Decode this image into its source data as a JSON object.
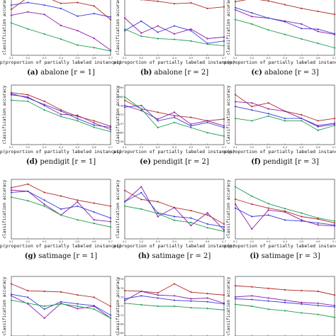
{
  "figure": {
    "xlabel": "p(proportion of partially labeled instances)",
    "ylabel": "classification accuracy",
    "x_ticks": [
      "0.1",
      "0.2",
      "0.3",
      "0.4",
      "0.5",
      "0.6",
      "0.7"
    ]
  },
  "colors": {
    "green": "#1f9e54",
    "red": "#b22a2a",
    "purple": "#8b1fa8",
    "blue": "#3b3bd6"
  },
  "chart_data": [
    {
      "type": "line",
      "caption_letter": "(a)",
      "caption_text": "abalone [r = 1]",
      "x": [
        0.1,
        0.2,
        0.3,
        0.4,
        0.5,
        0.6,
        0.7
      ],
      "ylim": [
        0.1,
        0.8
      ],
      "y_ticks": [],
      "legend": [],
      "series": [
        {
          "color_key": "red",
          "values": [
            0.64,
            0.78,
            0.79,
            0.71,
            0.72,
            0.68,
            0.52
          ]
        },
        {
          "color_key": "blue",
          "values": [
            0.69,
            0.72,
            0.69,
            0.65,
            0.56,
            0.59,
            0.55
          ]
        },
        {
          "color_key": "purple",
          "values": [
            0.57,
            0.61,
            0.58,
            0.45,
            0.39,
            0.3,
            0.16
          ]
        },
        {
          "color_key": "green",
          "values": [
            0.48,
            0.41,
            0.35,
            0.29,
            0.22,
            0.19,
            0.15
          ]
        }
      ]
    },
    {
      "type": "line",
      "caption_letter": "(b)",
      "caption_text": "abalone [r = 2]",
      "x": [
        0.1,
        0.2,
        0.3,
        0.4,
        0.5,
        0.6,
        0.7
      ],
      "ylim": [
        0.15,
        0.9
      ],
      "y_ticks": [],
      "legend": [],
      "series": [
        {
          "color_key": "red",
          "values": [
            0.89,
            0.85,
            0.83,
            0.8,
            0.81,
            0.74,
            0.76
          ]
        },
        {
          "color_key": "blue",
          "values": [
            0.46,
            0.58,
            0.44,
            0.52,
            0.46,
            0.3,
            0.33
          ]
        },
        {
          "color_key": "purple",
          "values": [
            0.62,
            0.43,
            0.52,
            0.42,
            0.48,
            0.36,
            0.38
          ]
        },
        {
          "color_key": "green",
          "values": [
            0.48,
            0.39,
            0.36,
            0.35,
            0.33,
            0.29,
            0.27
          ]
        }
      ]
    },
    {
      "type": "line",
      "caption_letter": "(c)",
      "caption_text": "abalone [r = 3]",
      "x": [
        0.1,
        0.2,
        0.3,
        0.4,
        0.5,
        0.6,
        0.7
      ],
      "ylim": [
        0.1,
        0.9
      ],
      "y_ticks": [],
      "legend": [],
      "series": [
        {
          "color_key": "red",
          "values": [
            0.82,
            0.86,
            0.83,
            0.78,
            0.73,
            0.69,
            0.65
          ]
        },
        {
          "color_key": "purple",
          "values": [
            0.71,
            0.62,
            0.6,
            0.56,
            0.52,
            0.42,
            0.38
          ]
        },
        {
          "color_key": "blue",
          "values": [
            0.74,
            0.67,
            0.6,
            0.55,
            0.46,
            0.45,
            0.39
          ]
        },
        {
          "color_key": "green",
          "values": [
            0.58,
            0.52,
            0.44,
            0.38,
            0.32,
            0.26,
            0.2
          ]
        }
      ]
    },
    {
      "type": "line",
      "caption_letter": "(d)",
      "caption_text": "pendigit [r = 1]",
      "x": [
        0.1,
        0.2,
        0.3,
        0.4,
        0.5,
        0.6,
        0.7
      ],
      "ylim": [
        0.93,
        0.985
      ],
      "y_ticks": [],
      "legend": [],
      "series": [
        {
          "color_key": "red",
          "values": [
            0.978,
            0.976,
            0.97,
            0.962,
            0.956,
            0.952,
            0.947
          ]
        },
        {
          "color_key": "purple",
          "values": [
            0.976,
            0.974,
            0.966,
            0.958,
            0.957,
            0.95,
            0.944
          ]
        },
        {
          "color_key": "blue",
          "values": [
            0.977,
            0.973,
            0.967,
            0.961,
            0.954,
            0.948,
            0.946
          ]
        },
        {
          "color_key": "green",
          "values": [
            0.971,
            0.97,
            0.962,
            0.956,
            0.952,
            0.946,
            0.942
          ]
        }
      ]
    },
    {
      "type": "line",
      "caption_letter": "(e)",
      "caption_text": "pendigit [r = 2]",
      "x": [
        0.1,
        0.2,
        0.3,
        0.4,
        0.5,
        0.6,
        0.7
      ],
      "ylim": [
        0.955,
        0.99
      ],
      "y_ticks": [
        "0.99",
        "0.985",
        "0.98",
        "0.975",
        "0.97",
        "0.965",
        "0.96"
      ],
      "legend": [],
      "series": [
        {
          "color_key": "red",
          "values": [
            0.981,
            0.976,
            0.974,
            0.972,
            0.971,
            0.969,
            0.97
          ]
        },
        {
          "color_key": "purple",
          "values": [
            0.978,
            0.975,
            0.97,
            0.974,
            0.967,
            0.969,
            0.966
          ]
        },
        {
          "color_key": "blue",
          "values": [
            0.977,
            0.978,
            0.969,
            0.971,
            0.966,
            0.968,
            0.965
          ]
        },
        {
          "color_key": "green",
          "values": [
            0.983,
            0.976,
            0.965,
            0.968,
            0.965,
            0.962,
            0.96
          ]
        }
      ]
    },
    {
      "type": "line",
      "caption_letter": "(f)",
      "caption_text": "pendigit [r = 3]",
      "x": [
        0.1,
        0.2,
        0.3,
        0.4,
        0.5,
        0.6,
        0.7
      ],
      "ylim": [
        0.94,
        0.99
      ],
      "y_ticks": [],
      "legend": [],
      "series": [
        {
          "color_key": "red",
          "values": [
            0.982,
            0.972,
            0.975,
            0.968,
            0.965,
            0.96,
            0.962
          ]
        },
        {
          "color_key": "purple",
          "values": [
            0.976,
            0.975,
            0.97,
            0.968,
            0.962,
            0.955,
            0.957
          ]
        },
        {
          "color_key": "blue",
          "values": [
            0.972,
            0.969,
            0.966,
            0.962,
            0.962,
            0.956,
            0.958
          ]
        },
        {
          "color_key": "green",
          "values": [
            0.962,
            0.96,
            0.964,
            0.96,
            0.96,
            0.952,
            0.956
          ]
        }
      ]
    },
    {
      "type": "line",
      "caption_letter": "(g)",
      "caption_text": "satimage [r = 1]",
      "x": [
        0.1,
        0.2,
        0.3,
        0.4,
        0.5,
        0.6,
        0.7
      ],
      "ylim": [
        0.78,
        0.88
      ],
      "y_ticks": [],
      "legend": [],
      "series": [
        {
          "color_key": "red",
          "values": [
            0.866,
            0.872,
            0.858,
            0.852,
            0.845,
            0.84,
            0.835
          ]
        },
        {
          "color_key": "purple",
          "values": [
            0.862,
            0.86,
            0.838,
            0.82,
            0.842,
            0.812,
            0.809
          ]
        },
        {
          "color_key": "blue",
          "values": [
            0.858,
            0.86,
            0.845,
            0.83,
            0.835,
            0.825,
            0.815
          ]
        },
        {
          "color_key": "green",
          "values": [
            0.85,
            0.844,
            0.835,
            0.82,
            0.812,
            0.806,
            0.8
          ]
        }
      ]
    },
    {
      "type": "line",
      "caption_letter": "(h)",
      "caption_text": "satimage [r = 2]",
      "x": [
        0.1,
        0.2,
        0.3,
        0.4,
        0.5,
        0.6,
        0.7
      ],
      "ylim": [
        0.84,
        0.92
      ],
      "y_ticks": [],
      "legend": [],
      "series": [
        {
          "color_key": "red",
          "values": [
            0.905,
            0.893,
            0.89,
            0.882,
            0.878,
            0.872,
            0.86
          ]
        },
        {
          "color_key": "purple",
          "values": [
            0.89,
            0.91,
            0.87,
            0.882,
            0.858,
            0.875,
            0.852
          ]
        },
        {
          "color_key": "blue",
          "values": [
            0.89,
            0.902,
            0.875,
            0.87,
            0.868,
            0.86,
            0.856
          ]
        },
        {
          "color_key": "green",
          "values": [
            0.884,
            0.88,
            0.874,
            0.865,
            0.862,
            0.855,
            0.85
          ]
        }
      ]
    },
    {
      "type": "line",
      "caption_letter": "(i)",
      "caption_text": "satimage [r = 3]",
      "x": [
        0.1,
        0.2,
        0.3,
        0.4,
        0.5,
        0.6,
        0.7
      ],
      "ylim": [
        0.8,
        0.92
      ],
      "y_ticks": [],
      "legend": [],
      "series": [
        {
          "color_key": "green",
          "values": [
            0.905,
            0.886,
            0.871,
            0.861,
            0.852,
            0.842,
            0.836
          ]
        },
        {
          "color_key": "red",
          "values": [
            0.88,
            0.87,
            0.862,
            0.856,
            0.845,
            0.84,
            0.832
          ]
        },
        {
          "color_key": "purple",
          "values": [
            0.87,
            0.82,
            0.858,
            0.854,
            0.838,
            0.828,
            0.826
          ]
        },
        {
          "color_key": "blue",
          "values": [
            0.862,
            0.845,
            0.848,
            0.838,
            0.836,
            0.832,
            0.828
          ]
        }
      ]
    },
    {
      "type": "line",
      "caption_letter": "",
      "caption_text": "",
      "x": [
        0.1,
        0.2,
        0.3,
        0.4,
        0.5,
        0.6,
        0.7
      ],
      "ylim": [
        0.7,
        0.9
      ],
      "y_ticks": [],
      "legend": [],
      "series": [
        {
          "color_key": "red",
          "values": [
            0.875,
            0.852,
            0.85,
            0.848,
            0.838,
            0.83,
            0.8
          ]
        },
        {
          "color_key": "purple",
          "values": [
            0.835,
            0.808,
            0.76,
            0.81,
            0.792,
            0.8,
            0.76
          ]
        },
        {
          "color_key": "blue",
          "values": [
            0.84,
            0.83,
            0.79,
            0.815,
            0.808,
            0.802,
            0.77
          ]
        },
        {
          "color_key": "green",
          "values": [
            0.82,
            0.81,
            0.8,
            0.808,
            0.8,
            0.79,
            0.76
          ]
        }
      ]
    },
    {
      "type": "line",
      "caption_letter": "",
      "caption_text": "",
      "x": [
        0.1,
        0.2,
        0.3,
        0.4,
        0.5,
        0.6,
        0.7
      ],
      "ylim": [
        0.62,
        0.78
      ],
      "y_ticks": [
        "0.78",
        "0.76",
        "0.74",
        "0.72",
        "0.70",
        "0.68",
        "0.66"
      ],
      "legend": [],
      "series": [
        {
          "color_key": "red",
          "values": [
            0.742,
            0.74,
            0.736,
            0.76,
            0.738,
            0.734,
            0.73
          ]
        },
        {
          "color_key": "purple",
          "values": [
            0.715,
            0.74,
            0.73,
            0.728,
            0.72,
            0.722,
            0.708
          ]
        },
        {
          "color_key": "blue",
          "values": [
            0.72,
            0.728,
            0.722,
            0.716,
            0.714,
            0.712,
            0.706
          ]
        },
        {
          "color_key": "green",
          "values": [
            0.708,
            0.704,
            0.7,
            0.7,
            0.696,
            0.694,
            0.69
          ]
        }
      ]
    },
    {
      "type": "line",
      "caption_letter": "",
      "caption_text": "",
      "x": [
        0.1,
        0.2,
        0.3,
        0.4,
        0.5,
        0.6,
        0.7
      ],
      "ylim": [
        0.64,
        0.8
      ],
      "y_ticks": [],
      "legend": [],
      "series": [
        {
          "color_key": "red",
          "values": [
            0.775,
            0.772,
            0.768,
            0.764,
            0.762,
            0.76,
            0.75
          ]
        },
        {
          "color_key": "purple",
          "values": [
            0.745,
            0.748,
            0.742,
            0.736,
            0.73,
            0.728,
            0.722
          ]
        },
        {
          "color_key": "blue",
          "values": [
            0.74,
            0.738,
            0.734,
            0.73,
            0.726,
            0.722,
            0.718
          ]
        },
        {
          "color_key": "green",
          "values": [
            0.725,
            0.72,
            0.712,
            0.708,
            0.702,
            0.698,
            0.69
          ]
        }
      ]
    }
  ]
}
